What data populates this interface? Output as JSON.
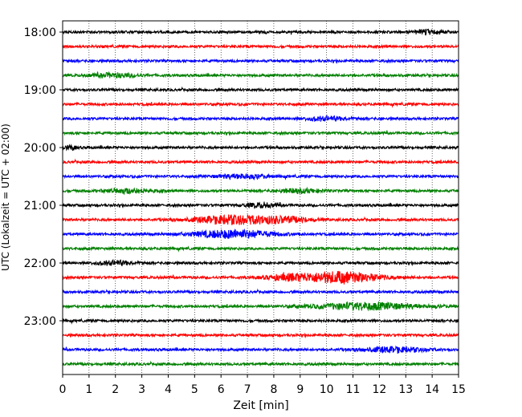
{
  "chart_data": {
    "type": "line",
    "title": "",
    "xlabel": "Zeit  [min]",
    "ylabel": "UTC (Lokalzeit = UTC + 02:00)",
    "xlim": [
      0,
      15
    ],
    "x_ticks": [
      "0",
      "1",
      "2",
      "3",
      "4",
      "5",
      "6",
      "7",
      "8",
      "9",
      "10",
      "11",
      "12",
      "13",
      "14",
      "15"
    ],
    "y_ticks": [
      "18:00",
      "19:00",
      "20:00",
      "21:00",
      "22:00",
      "23:00"
    ],
    "grid_x": true,
    "grid_style": "dotted",
    "colors": [
      "#000000",
      "#ff0000",
      "#0000ff",
      "#008000"
    ],
    "trace_interval_min": 15,
    "first_trace": "18:00",
    "trace_count": 24,
    "events": [
      {
        "trace": 0,
        "x": 13.8,
        "amp": 1.4,
        "width": 0.6
      },
      {
        "trace": 3,
        "x": 2.0,
        "amp": 1.5,
        "width": 0.8
      },
      {
        "trace": 6,
        "x": 10.0,
        "amp": 1.4,
        "width": 0.8
      },
      {
        "trace": 8,
        "x": 0.3,
        "amp": 1.5,
        "width": 0.2
      },
      {
        "trace": 10,
        "x": 6.8,
        "amp": 1.5,
        "width": 1.0
      },
      {
        "trace": 11,
        "x": 2.5,
        "amp": 1.6,
        "width": 0.9
      },
      {
        "trace": 11,
        "x": 9.0,
        "amp": 1.4,
        "width": 0.8
      },
      {
        "trace": 12,
        "x": 7.5,
        "amp": 1.5,
        "width": 0.6
      },
      {
        "trace": 13,
        "x": 6.5,
        "amp": 3.2,
        "width": 1.5
      },
      {
        "trace": 13,
        "x": 8.5,
        "amp": 1.8,
        "width": 1.0
      },
      {
        "trace": 14,
        "x": 6.5,
        "amp": 3.0,
        "width": 1.5
      },
      {
        "trace": 16,
        "x": 2.0,
        "amp": 1.5,
        "width": 0.7
      },
      {
        "trace": 17,
        "x": 10.5,
        "amp": 4.2,
        "width": 1.5
      },
      {
        "trace": 17,
        "x": 8.5,
        "amp": 1.8,
        "width": 0.8
      },
      {
        "trace": 19,
        "x": 11.5,
        "amp": 2.5,
        "width": 2.0
      },
      {
        "trace": 22,
        "x": 12.5,
        "amp": 1.8,
        "width": 1.2
      }
    ]
  }
}
